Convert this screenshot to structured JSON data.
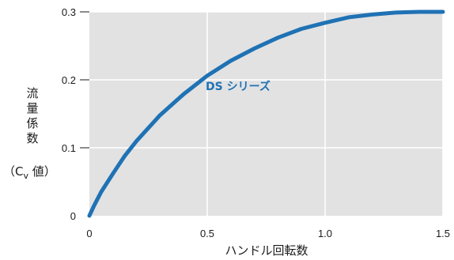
{
  "chart_data": {
    "type": "line",
    "xlabel": "ハンドル回転数",
    "ylabel_chars": [
      "流",
      "量",
      "係",
      "数"
    ],
    "ylabel_unit_open": "（C",
    "ylabel_unit_sub": "v",
    "ylabel_unit_close": " 値）",
    "xlim": [
      0,
      1.5
    ],
    "ylim": [
      0,
      0.3
    ],
    "x_ticks": [
      0,
      0.5,
      1.0,
      1.5
    ],
    "x_tick_labels": [
      "0",
      "0.5",
      "1.0",
      "1.5"
    ],
    "y_ticks": [
      0,
      0.1,
      0.2,
      0.3
    ],
    "y_tick_labels": [
      "0",
      "0.1",
      "0.2",
      "0.3"
    ],
    "grid": true,
    "plot_background": "#e2e2e3",
    "series": [
      {
        "name": "DS シリーズ",
        "color": "#1f72b4",
        "x": [
          0.0,
          0.02,
          0.05,
          0.1,
          0.15,
          0.2,
          0.3,
          0.4,
          0.5,
          0.6,
          0.7,
          0.8,
          0.9,
          1.0,
          1.1,
          1.2,
          1.3,
          1.4,
          1.5
        ],
        "y": [
          0.0,
          0.015,
          0.035,
          0.062,
          0.088,
          0.11,
          0.148,
          0.179,
          0.206,
          0.228,
          0.246,
          0.262,
          0.275,
          0.284,
          0.292,
          0.296,
          0.299,
          0.3,
          0.3
        ]
      }
    ]
  }
}
